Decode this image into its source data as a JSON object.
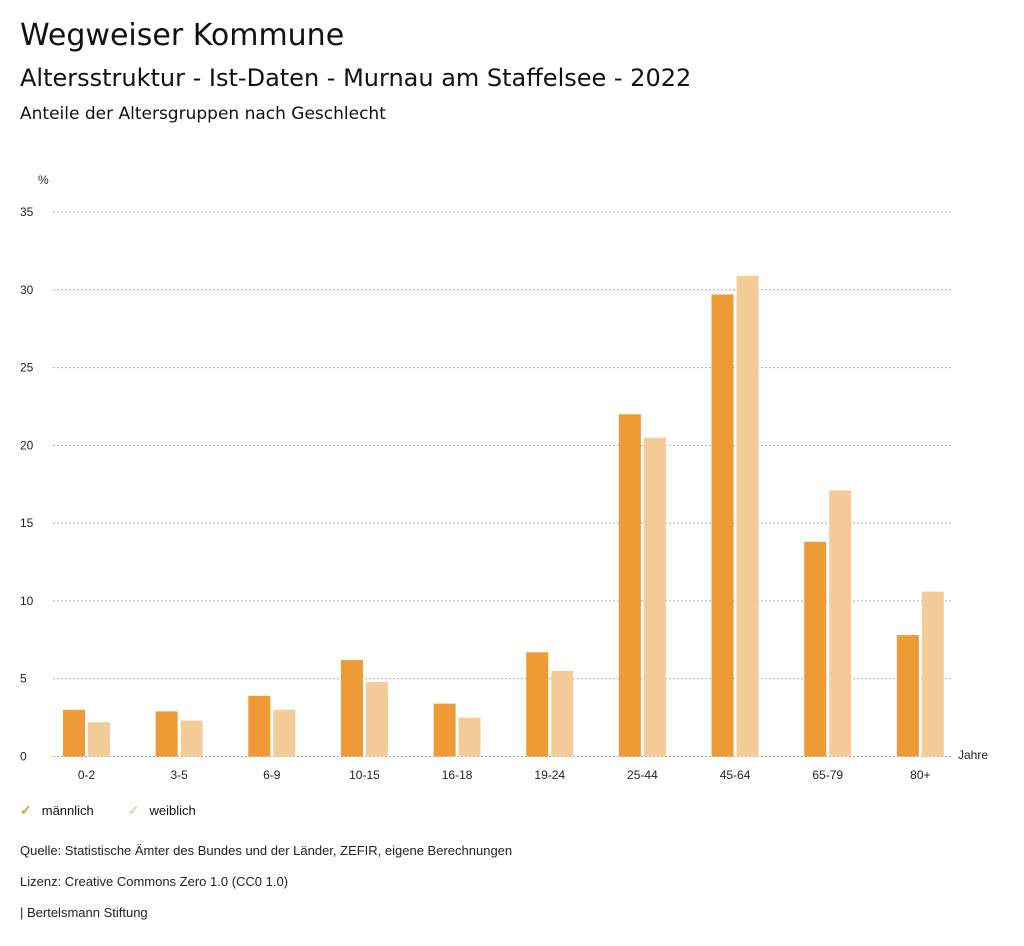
{
  "header": {
    "title": "Wegweiser Kommune",
    "subtitle": "Altersstruktur - Ist-Daten - Murnau am Staffelsee - 2022",
    "subsubtitle": "Anteile der Altersgruppen nach Geschlecht"
  },
  "colors": {
    "maennlich": "#ED9A37",
    "weiblich": "#F4CC9A",
    "grid": "#AAAAAA"
  },
  "chart_data": {
    "type": "bar",
    "title": "Anteile der Altersgruppen nach Geschlecht",
    "xlabel": "Jahre",
    "ylabel": "%",
    "ylim": [
      0,
      35
    ],
    "yticks": [
      0,
      5,
      10,
      15,
      20,
      25,
      30,
      35
    ],
    "grid": true,
    "legend_position": "bottom-left",
    "categories": [
      "0-2",
      "3-5",
      "6-9",
      "10-15",
      "16-18",
      "19-24",
      "25-44",
      "45-64",
      "65-79",
      "80+"
    ],
    "series": [
      {
        "name": "männlich",
        "values": [
          3.0,
          2.9,
          3.9,
          6.2,
          3.4,
          6.7,
          22.0,
          29.7,
          13.8,
          7.8
        ]
      },
      {
        "name": "weiblich",
        "values": [
          2.2,
          2.3,
          3.0,
          4.8,
          2.5,
          5.5,
          20.5,
          30.9,
          17.1,
          10.6
        ]
      }
    ]
  },
  "legend": {
    "items": [
      {
        "label": "männlich",
        "icon": "check-icon"
      },
      {
        "label": "weiblich",
        "icon": "check-icon"
      }
    ]
  },
  "footer": {
    "source": "Quelle: Statistische Ämter des Bundes und der Länder, ZEFIR, eigene Berechnungen",
    "license": "Lizenz: Creative Commons Zero 1.0 (CC0 1.0)",
    "publisher": "| Bertelsmann Stiftung"
  }
}
